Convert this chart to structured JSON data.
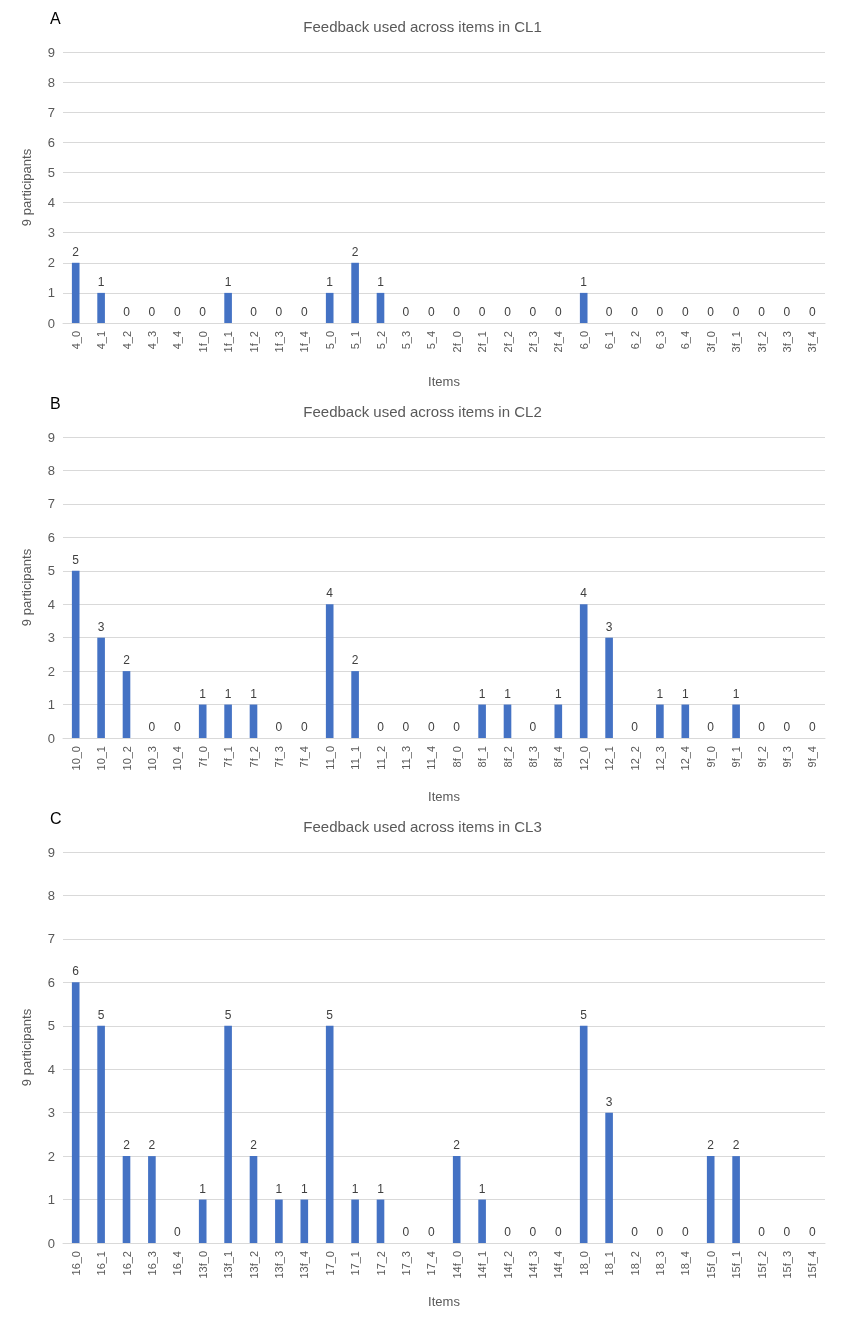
{
  "chart_data": [
    {
      "type": "bar",
      "title": "Feedback used across items in CL1",
      "annotations": [
        "A"
      ],
      "xlabel": "Items",
      "ylabel": "9 participants",
      "categories": [
        "4_0",
        "4_1",
        "4_2",
        "4_3",
        "4_4",
        "1f_0",
        "1f_1",
        "1f_2",
        "1f_3",
        "1f_4",
        "5_0",
        "5_1",
        "5_2",
        "5_3",
        "5_4",
        "2f_0",
        "2f_1",
        "2f_2",
        "2f_3",
        "2f_4",
        "6_0",
        "6_1",
        "6_2",
        "6_3",
        "6_4",
        "3f_0",
        "3f_1",
        "3f_2",
        "3f_3",
        "3f_4"
      ],
      "values": [
        2,
        1,
        0,
        0,
        0,
        0,
        1,
        0,
        0,
        0,
        1,
        2,
        1,
        0,
        0,
        0,
        0,
        0,
        0,
        0,
        1,
        0,
        0,
        0,
        0,
        0,
        0,
        0,
        0,
        0
      ],
      "color": "#4472c4",
      "ylim": [
        0,
        9
      ],
      "yticks": [
        0,
        1,
        2,
        3,
        4,
        5,
        6,
        7,
        8,
        9
      ],
      "grid": "y",
      "data_labels": true
    },
    {
      "type": "bar",
      "title": "Feedback used across items in CL2",
      "annotations": [
        "B"
      ],
      "xlabel": "Items",
      "ylabel": "9 participants",
      "categories": [
        "10_0",
        "10_1",
        "10_2",
        "10_3",
        "10_4",
        "7f_0",
        "7f_1",
        "7f_2",
        "7f_3",
        "7f_4",
        "11_0",
        "11_1",
        "11_2",
        "11_3",
        "11_4",
        "8f_0",
        "8f_1",
        "8f_2",
        "8f_3",
        "8f_4",
        "12_0",
        "12_1",
        "12_2",
        "12_3",
        "12_4",
        "9f_0",
        "9f_1",
        "9f_2",
        "9f_3",
        "9f_4"
      ],
      "values": [
        5,
        3,
        2,
        0,
        0,
        1,
        1,
        1,
        0,
        0,
        4,
        2,
        0,
        0,
        0,
        0,
        1,
        1,
        0,
        1,
        4,
        3,
        0,
        1,
        1,
        0,
        1,
        0,
        0,
        0
      ],
      "color": "#4472c4",
      "ylim": [
        0,
        9
      ],
      "yticks": [
        0,
        1,
        2,
        3,
        4,
        5,
        6,
        7,
        8,
        9
      ],
      "grid": "y",
      "data_labels": true
    },
    {
      "type": "bar",
      "title": "Feedback used across items in CL3",
      "annotations": [
        "C"
      ],
      "xlabel": "Items",
      "ylabel": "9 participants",
      "categories": [
        "16_0",
        "16_1",
        "16_2",
        "16_3",
        "16_4",
        "13f_0",
        "13f_1",
        "13f_2",
        "13f_3",
        "13f_4",
        "17_0",
        "17_1",
        "17_2",
        "17_3",
        "17_4",
        "14f_0",
        "14f_1",
        "14f_2",
        "14f_3",
        "14f_4",
        "18_0",
        "18_1",
        "18_2",
        "18_3",
        "18_4",
        "15f_0",
        "15f_1",
        "15f_2",
        "15f_3",
        "15f_4"
      ],
      "values": [
        6,
        5,
        2,
        2,
        0,
        1,
        5,
        2,
        1,
        1,
        5,
        1,
        1,
        0,
        0,
        2,
        1,
        0,
        0,
        0,
        5,
        3,
        0,
        0,
        0,
        2,
        2,
        0,
        0,
        0
      ],
      "color": "#4472c4",
      "ylim": [
        0,
        9
      ],
      "yticks": [
        0,
        1,
        2,
        3,
        4,
        5,
        6,
        7,
        8,
        9
      ],
      "grid": "y",
      "data_labels": true
    }
  ]
}
